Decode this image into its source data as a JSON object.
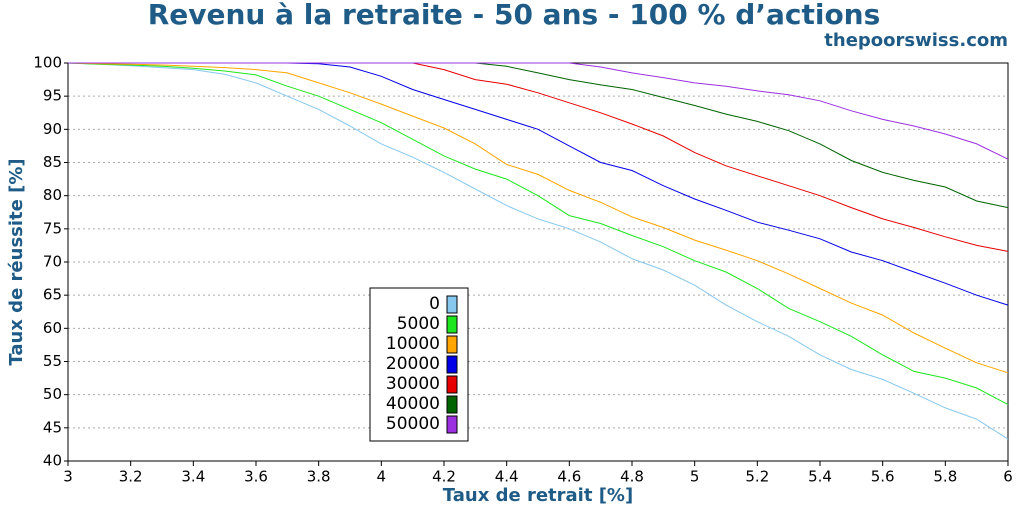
{
  "chart_data": {
    "type": "line",
    "title": "Revenu à la retraite - 50 ans - 100 % d’actions",
    "subtitle": "thepoorswiss.com",
    "xlabel": "Taux de retrait [%]",
    "ylabel": "Taux de réussite [%]",
    "x": [
      3.0,
      3.1,
      3.2,
      3.3,
      3.4,
      3.5,
      3.6,
      3.7,
      3.8,
      3.9,
      4.0,
      4.1,
      4.2,
      4.3,
      4.4,
      4.5,
      4.6,
      4.7,
      4.8,
      4.9,
      5.0,
      5.1,
      5.2,
      5.3,
      5.4,
      5.5,
      5.6,
      5.7,
      5.8,
      5.9,
      6.0
    ],
    "xlim": [
      3,
      6
    ],
    "xticks": [
      3,
      3.2,
      3.4,
      3.6,
      3.8,
      4,
      4.2,
      4.4,
      4.6,
      4.8,
      5,
      5.2,
      5.4,
      5.6,
      5.8,
      6
    ],
    "ylim": [
      40,
      100
    ],
    "yticks": [
      40,
      45,
      50,
      55,
      60,
      65,
      70,
      75,
      80,
      85,
      90,
      95,
      100
    ],
    "grid": true,
    "legend": "lower center",
    "series": [
      {
        "name": "0",
        "color": "#87c8ee",
        "values": [
          100,
          99.8,
          99.6,
          99.3,
          99,
          98.3,
          97,
          95,
          93,
          90.5,
          87.8,
          85.8,
          83.5,
          81,
          78.5,
          76.5,
          75,
          73,
          70.5,
          68.8,
          66.5,
          63.5,
          61,
          58.8,
          56,
          53.8,
          52.3,
          50.2,
          48,
          46.3,
          43.3
        ]
      },
      {
        "name": "5000",
        "color": "#1ee61e",
        "values": [
          100,
          99.8,
          99.7,
          99.5,
          99.2,
          98.8,
          98.2,
          96.5,
          95,
          93,
          91,
          88.5,
          86,
          84,
          82.5,
          80,
          77,
          75.8,
          74,
          72.3,
          70.2,
          68.5,
          66,
          63,
          61,
          58.8,
          56,
          53.5,
          52.5,
          51,
          48.5
        ]
      },
      {
        "name": "10000",
        "color": "#ffa500",
        "values": [
          100,
          99.9,
          99.8,
          99.7,
          99.5,
          99.3,
          99,
          98.5,
          97,
          95.5,
          93.8,
          92,
          90.2,
          87.8,
          84.7,
          83.2,
          80.8,
          79,
          76.8,
          75.2,
          73.3,
          71.8,
          70.2,
          68.2,
          66,
          63.8,
          62,
          59.3,
          57,
          54.8,
          53.3
        ]
      },
      {
        "name": "20000",
        "color": "#0000e6",
        "values": [
          100,
          100,
          100,
          100,
          100,
          100,
          100,
          100,
          99.9,
          99.4,
          98,
          96,
          94.5,
          93,
          91.5,
          90,
          87.5,
          85,
          83.8,
          81.5,
          79.5,
          77.8,
          76,
          74.8,
          73.5,
          71.5,
          70.2,
          68.5,
          66.8,
          65,
          63.5
        ]
      },
      {
        "name": "30000",
        "color": "#e60000",
        "values": [
          100,
          100,
          100,
          100,
          100,
          100,
          100,
          100,
          100,
          100,
          100,
          100,
          99,
          97.5,
          96.8,
          95.5,
          94,
          92.5,
          90.8,
          89,
          86.5,
          84.5,
          83,
          81.5,
          80,
          78.2,
          76.5,
          75.2,
          73.8,
          72.5,
          71.6
        ]
      },
      {
        "name": "40000",
        "color": "#006400",
        "values": [
          100,
          100,
          100,
          100,
          100,
          100,
          100,
          100,
          100,
          100,
          100,
          100,
          100,
          100,
          99.5,
          98.5,
          97.5,
          96.7,
          96,
          94.8,
          93.6,
          92.3,
          91.2,
          89.8,
          87.8,
          85.3,
          83.5,
          82.3,
          81.3,
          79.2,
          78.2
        ]
      },
      {
        "name": "50000",
        "color": "#9b30e0",
        "values": [
          100,
          100,
          100,
          100,
          100,
          100,
          100,
          100,
          100,
          100,
          100,
          100,
          100,
          100,
          100,
          100,
          100,
          99.4,
          98.5,
          97.8,
          97,
          96.5,
          95.8,
          95.2,
          94.3,
          92.8,
          91.5,
          90.5,
          89.3,
          87.8,
          85.5
        ]
      }
    ]
  }
}
